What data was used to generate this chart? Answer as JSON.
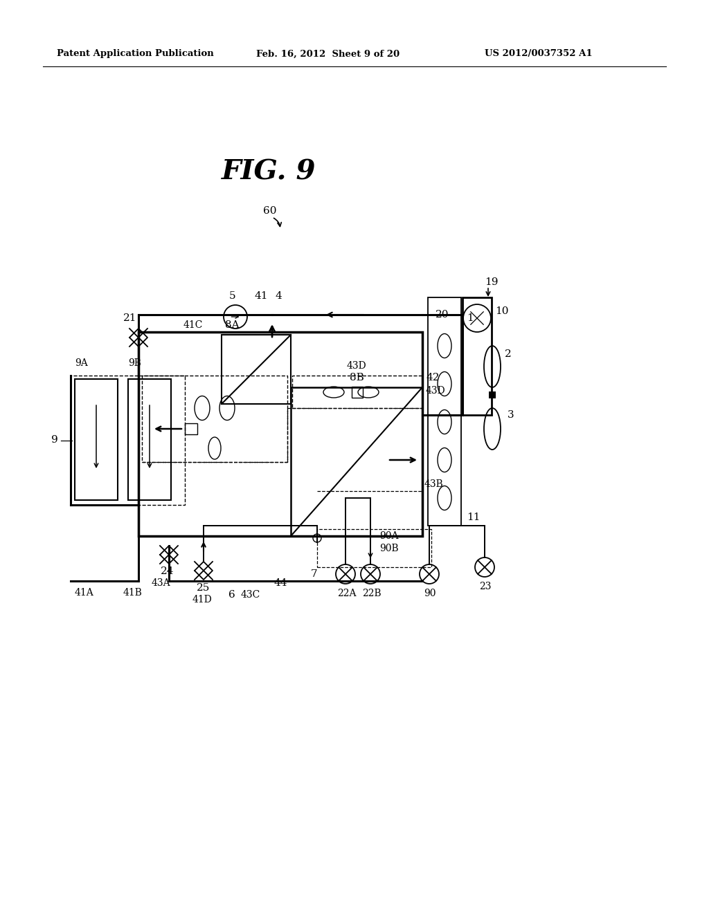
{
  "bg_color": "#ffffff",
  "lc": "#000000",
  "header_left": "Patent Application Publication",
  "header_mid": "Feb. 16, 2012  Sheet 9 of 20",
  "header_right": "US 2012/0037352 A1",
  "fig_title": "FIG. 9"
}
